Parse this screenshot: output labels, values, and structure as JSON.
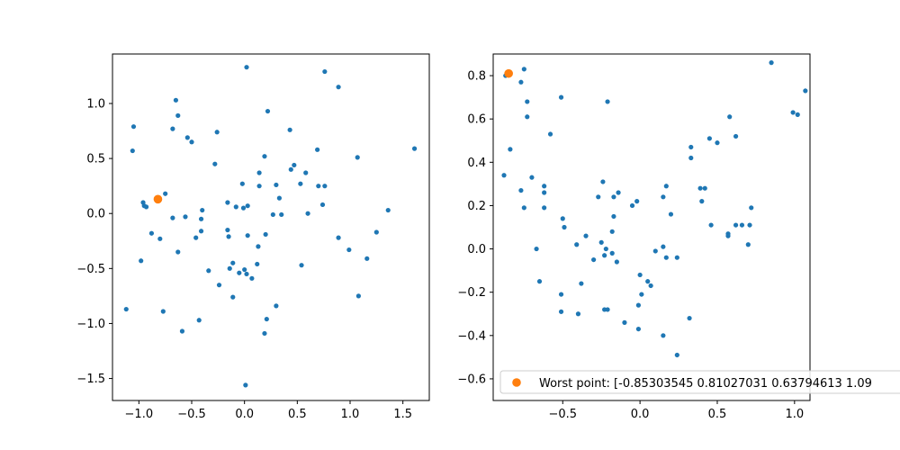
{
  "colors": {
    "series": "#1f77b4",
    "worst": "#ff7f0e",
    "axis": "#000000",
    "legend_border": "#cccccc"
  },
  "chart_data": [
    {
      "type": "scatter",
      "title": "",
      "xlabel": "",
      "ylabel": "",
      "xlim": [
        -1.25,
        1.75
      ],
      "ylim": [
        -1.7,
        1.45
      ],
      "xticks": [
        -1.0,
        -0.5,
        0.0,
        0.5,
        1.0,
        1.5
      ],
      "xtick_labels": [
        "−1.0",
        "−0.5",
        "0.0",
        "0.5",
        "1.0",
        "1.5"
      ],
      "yticks": [
        -1.5,
        -1.0,
        -0.5,
        0.0,
        0.5,
        1.0
      ],
      "ytick_labels": [
        "−1.5",
        "−1.0",
        "−0.5",
        "0.0",
        "0.5",
        "1.0"
      ],
      "grid": false,
      "points": [
        [
          0.02,
          1.33
        ],
        [
          -0.65,
          1.03
        ],
        [
          -0.63,
          0.89
        ],
        [
          -0.68,
          0.77
        ],
        [
          -0.54,
          0.69
        ],
        [
          -0.5,
          0.65
        ],
        [
          -0.26,
          0.74
        ],
        [
          -1.05,
          0.79
        ],
        [
          -1.06,
          0.57
        ],
        [
          -0.28,
          0.45
        ],
        [
          0.22,
          0.93
        ],
        [
          0.43,
          0.76
        ],
        [
          0.76,
          1.29
        ],
        [
          0.89,
          1.15
        ],
        [
          1.07,
          0.51
        ],
        [
          1.61,
          0.59
        ],
        [
          0.69,
          0.58
        ],
        [
          0.19,
          0.52
        ],
        [
          0.14,
          0.37
        ],
        [
          0.47,
          0.44
        ],
        [
          0.44,
          0.4
        ],
        [
          0.58,
          0.37
        ],
        [
          0.3,
          0.26
        ],
        [
          0.14,
          0.25
        ],
        [
          -0.02,
          0.27
        ],
        [
          0.53,
          0.27
        ],
        [
          0.7,
          0.25
        ],
        [
          0.76,
          0.25
        ],
        [
          -0.75,
          0.18
        ],
        [
          -0.96,
          0.1
        ],
        [
          -0.95,
          0.07
        ],
        [
          -0.93,
          0.06
        ],
        [
          0.33,
          0.14
        ],
        [
          0.03,
          0.07
        ],
        [
          -0.16,
          0.1
        ],
        [
          -0.08,
          0.06
        ],
        [
          -0.01,
          0.05
        ],
        [
          0.74,
          0.08
        ],
        [
          -0.4,
          0.03
        ],
        [
          -0.68,
          -0.04
        ],
        [
          -0.56,
          -0.03
        ],
        [
          -0.41,
          -0.05
        ],
        [
          0.27,
          -0.01
        ],
        [
          0.35,
          -0.01
        ],
        [
          0.6,
          0.0
        ],
        [
          -0.88,
          -0.18
        ],
        [
          -0.8,
          -0.23
        ],
        [
          -0.41,
          -0.16
        ],
        [
          -0.16,
          -0.15
        ],
        [
          0.03,
          -0.2
        ],
        [
          0.2,
          -0.19
        ],
        [
          -0.46,
          -0.22
        ],
        [
          -0.15,
          -0.21
        ],
        [
          0.13,
          -0.3
        ],
        [
          -0.63,
          -0.35
        ],
        [
          -0.98,
          -0.43
        ],
        [
          -0.11,
          -0.45
        ],
        [
          0.54,
          -0.47
        ],
        [
          -0.34,
          -0.52
        ],
        [
          -0.14,
          -0.5
        ],
        [
          -0.05,
          -0.54
        ],
        [
          0.0,
          -0.51
        ],
        [
          0.02,
          -0.55
        ],
        [
          0.07,
          -0.59
        ],
        [
          0.12,
          -0.46
        ],
        [
          -0.24,
          -0.65
        ],
        [
          0.89,
          -0.22
        ],
        [
          0.99,
          -0.33
        ],
        [
          1.16,
          -0.41
        ],
        [
          1.25,
          -0.17
        ],
        [
          1.36,
          0.03
        ],
        [
          -0.11,
          -0.76
        ],
        [
          1.08,
          -0.75
        ],
        [
          -1.12,
          -0.87
        ],
        [
          -0.77,
          -0.89
        ],
        [
          0.3,
          -0.84
        ],
        [
          0.21,
          -0.96
        ],
        [
          -0.43,
          -0.97
        ],
        [
          -0.59,
          -1.07
        ],
        [
          0.19,
          -1.09
        ],
        [
          0.01,
          -1.56
        ]
      ],
      "worst_point": [
        -0.82,
        0.13
      ]
    },
    {
      "type": "scatter",
      "title": "",
      "xlabel": "",
      "ylabel": "",
      "xlim": [
        -0.95,
        1.1
      ],
      "ylim": [
        -0.7,
        0.9
      ],
      "xticks": [
        -0.5,
        0.0,
        0.5,
        1.0
      ],
      "xtick_labels": [
        "−0.5",
        "0.0",
        "0.5",
        "1.0"
      ],
      "yticks": [
        -0.6,
        -0.4,
        -0.2,
        0.0,
        0.2,
        0.4,
        0.6,
        0.8
      ],
      "ytick_labels": [
        "−0.6",
        "−0.4",
        "−0.2",
        "0.0",
        "0.2",
        "0.4",
        "0.6",
        "0.8"
      ],
      "grid": false,
      "points": [
        [
          -0.75,
          0.83
        ],
        [
          -0.77,
          0.77
        ],
        [
          -0.87,
          0.8
        ],
        [
          -0.73,
          0.68
        ],
        [
          -0.73,
          0.61
        ],
        [
          -0.51,
          0.7
        ],
        [
          -0.58,
          0.53
        ],
        [
          -0.21,
          0.68
        ],
        [
          -0.84,
          0.46
        ],
        [
          -0.88,
          0.34
        ],
        [
          -0.7,
          0.33
        ],
        [
          -0.77,
          0.27
        ],
        [
          -0.62,
          0.29
        ],
        [
          -0.62,
          0.26
        ],
        [
          -0.75,
          0.19
        ],
        [
          -0.62,
          0.19
        ],
        [
          -0.24,
          0.31
        ],
        [
          -0.14,
          0.26
        ],
        [
          -0.17,
          0.24
        ],
        [
          -0.27,
          0.24
        ],
        [
          -0.05,
          0.2
        ],
        [
          -0.02,
          0.22
        ],
        [
          0.17,
          0.29
        ],
        [
          0.15,
          0.24
        ],
        [
          0.2,
          0.16
        ],
        [
          -0.5,
          0.14
        ],
        [
          -0.49,
          0.1
        ],
        [
          -0.17,
          0.15
        ],
        [
          -0.35,
          0.06
        ],
        [
          -0.41,
          0.02
        ],
        [
          -0.25,
          0.03
        ],
        [
          -0.18,
          0.08
        ],
        [
          0.1,
          -0.01
        ],
        [
          0.15,
          0.01
        ],
        [
          -0.67,
          0.0
        ],
        [
          -0.22,
          0.0
        ],
        [
          -0.3,
          -0.05
        ],
        [
          -0.23,
          -0.03
        ],
        [
          -0.18,
          -0.02
        ],
        [
          -0.15,
          -0.06
        ],
        [
          0.17,
          -0.04
        ],
        [
          0.24,
          -0.04
        ],
        [
          0.33,
          0.42
        ],
        [
          0.33,
          0.47
        ],
        [
          0.45,
          0.51
        ],
        [
          0.5,
          0.49
        ],
        [
          0.58,
          0.61
        ],
        [
          0.62,
          0.52
        ],
        [
          0.39,
          0.28
        ],
        [
          0.42,
          0.28
        ],
        [
          0.4,
          0.22
        ],
        [
          0.46,
          0.11
        ],
        [
          0.57,
          0.07
        ],
        [
          0.57,
          0.06
        ],
        [
          0.62,
          0.11
        ],
        [
          0.66,
          0.11
        ],
        [
          0.71,
          0.11
        ],
        [
          0.72,
          0.19
        ],
        [
          0.7,
          0.02
        ],
        [
          0.85,
          0.86
        ],
        [
          0.99,
          0.63
        ],
        [
          1.02,
          0.62
        ],
        [
          1.07,
          0.73
        ],
        [
          -0.65,
          -0.15
        ],
        [
          -0.38,
          -0.16
        ],
        [
          -0.51,
          -0.21
        ],
        [
          0.0,
          -0.12
        ],
        [
          0.05,
          -0.15
        ],
        [
          0.07,
          -0.17
        ],
        [
          0.01,
          -0.21
        ],
        [
          -0.01,
          -0.26
        ],
        [
          -0.51,
          -0.29
        ],
        [
          -0.4,
          -0.3
        ],
        [
          -0.23,
          -0.28
        ],
        [
          -0.21,
          -0.28
        ],
        [
          -0.1,
          -0.34
        ],
        [
          0.32,
          -0.32
        ],
        [
          -0.01,
          -0.37
        ],
        [
          0.15,
          -0.4
        ],
        [
          0.24,
          -0.49
        ]
      ],
      "worst_point": [
        -0.85,
        0.81
      ],
      "legend": {
        "label": "Worst point: [-0.85303545  0.81027031  0.63794613  1.09",
        "placement": "lower right"
      }
    }
  ]
}
